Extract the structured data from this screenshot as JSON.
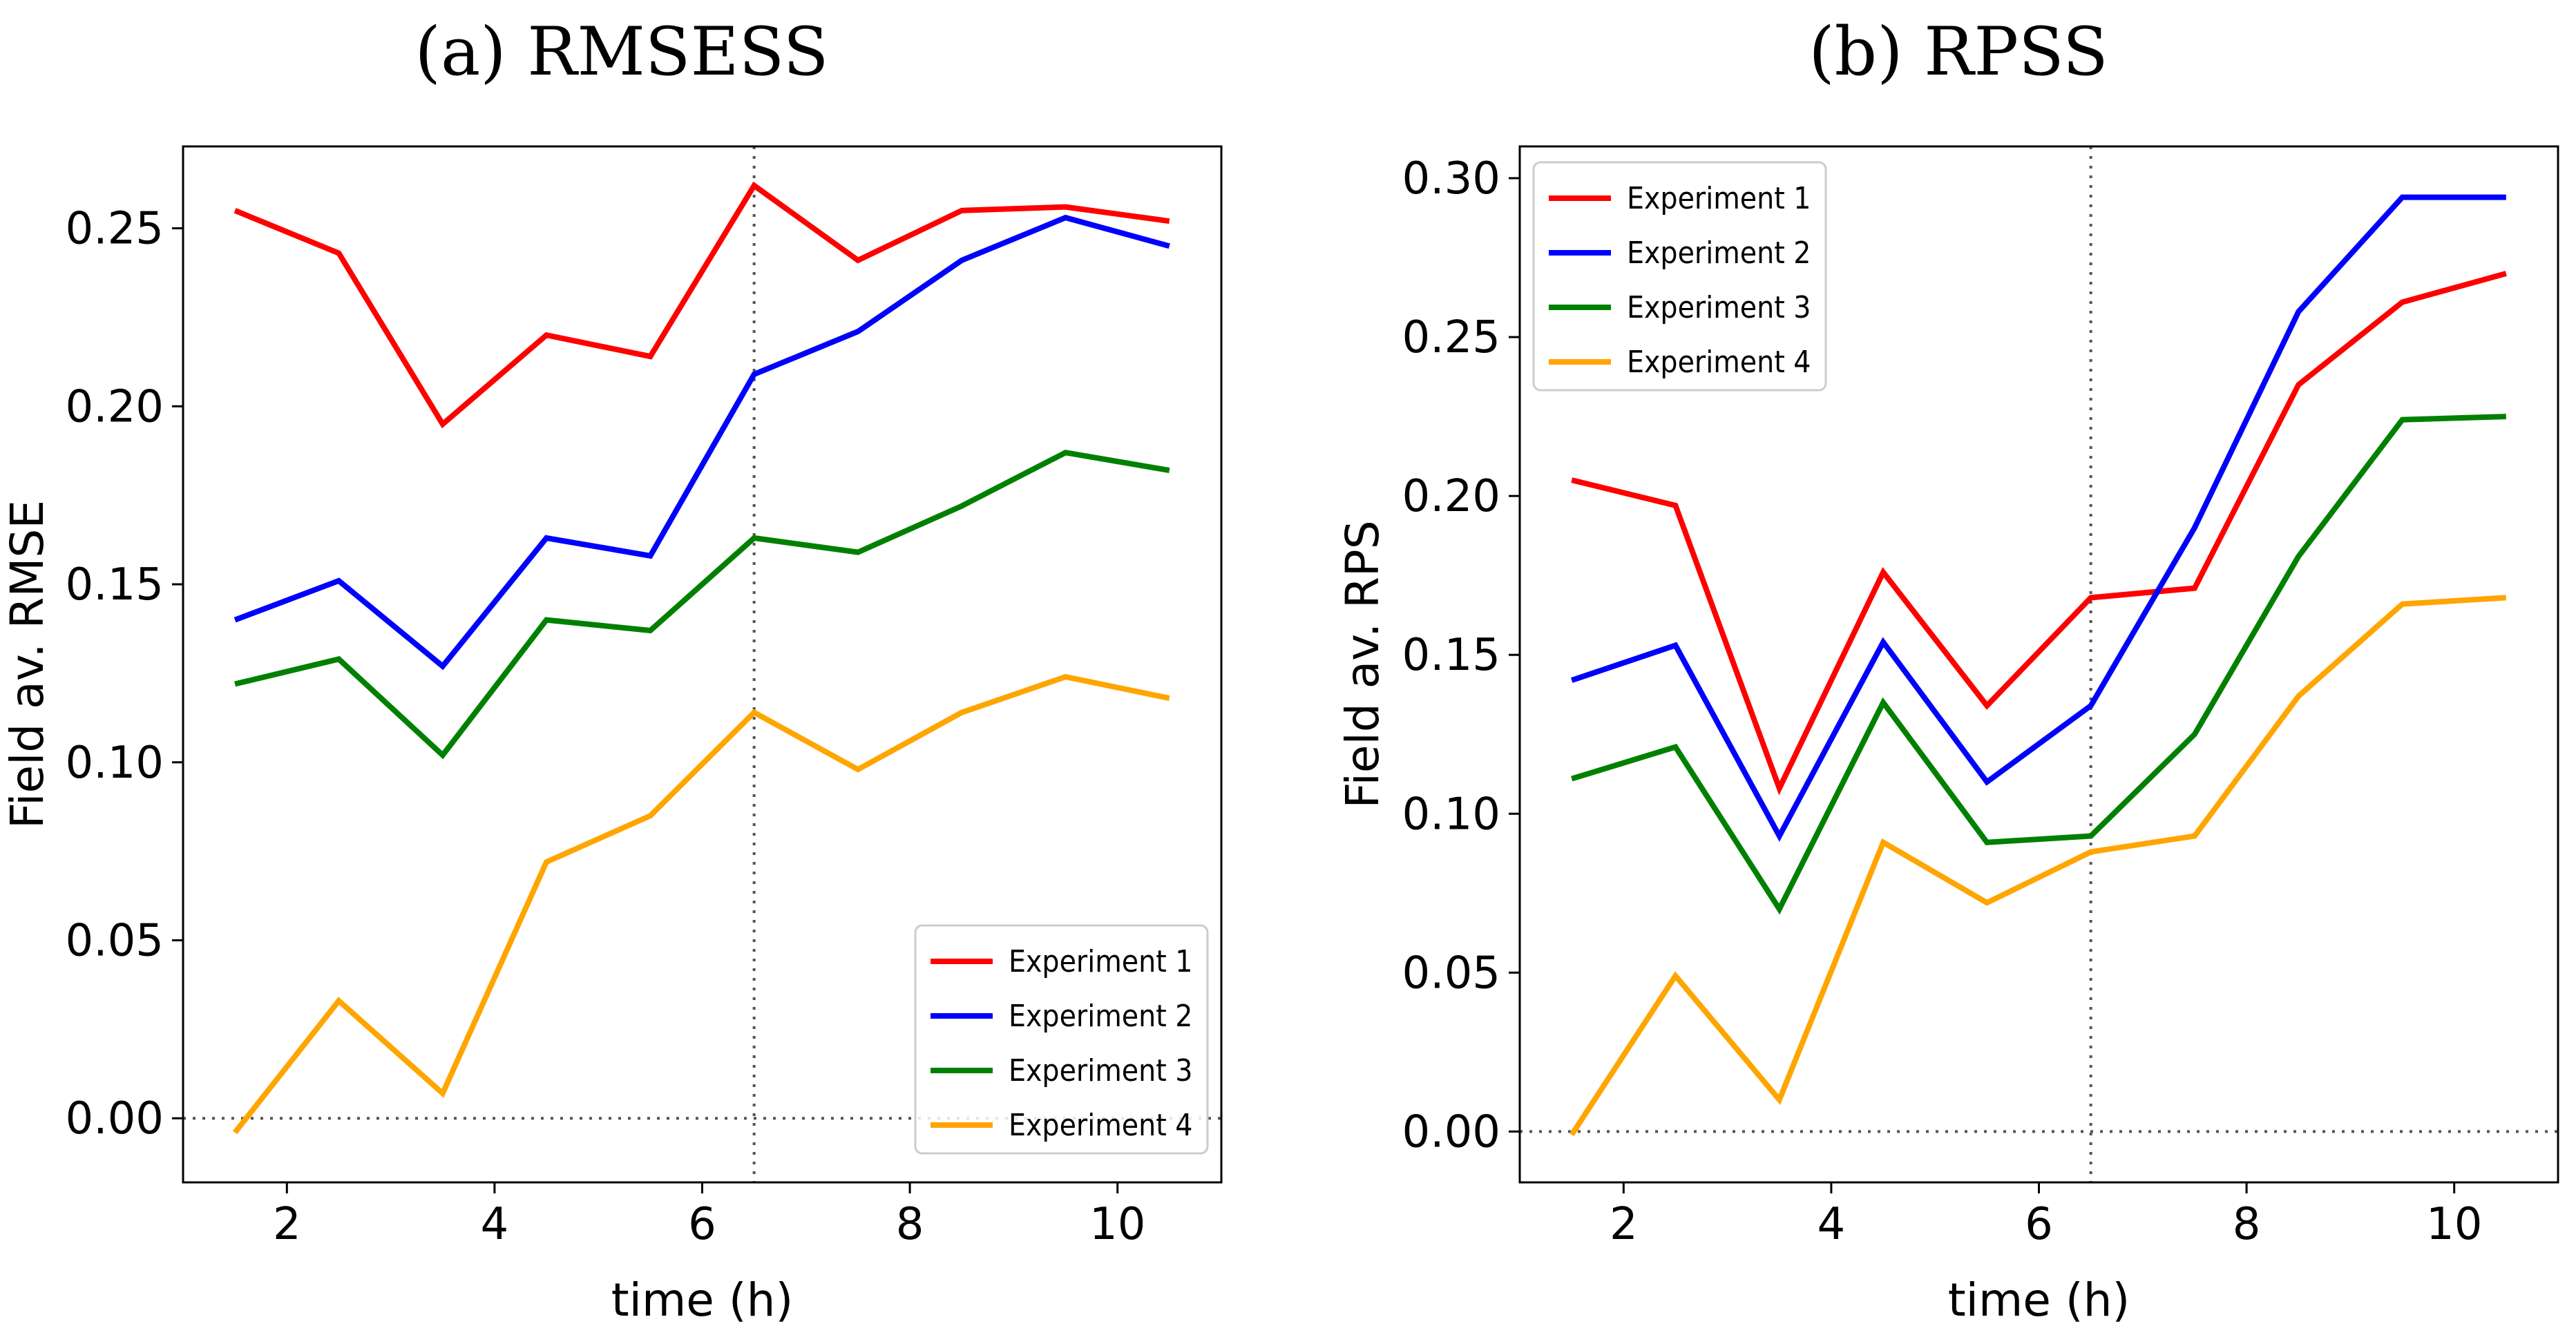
{
  "chart_data": [
    {
      "type": "line",
      "title": "(a) RMSESS",
      "xlabel": "time (h)",
      "ylabel": "Field av. RMSE",
      "xlim": [
        1.0,
        11.0
      ],
      "ylim": [
        -0.018,
        0.273
      ],
      "x_ticks": [
        2,
        4,
        6,
        8,
        10
      ],
      "y_ticks": [
        0.0,
        0.05,
        0.1,
        0.15,
        0.2,
        0.25
      ],
      "y_tick_labels": [
        "0.00",
        "0.05",
        "0.10",
        "0.15",
        "0.20",
        "0.25"
      ],
      "vline_x": 6.5,
      "hline_y": 0.0,
      "legend_position": "lower-right",
      "x": [
        1.5,
        2.5,
        3.5,
        4.5,
        5.5,
        6.5,
        7.5,
        8.5,
        9.5,
        10.5
      ],
      "series": [
        {
          "name": "Experiment 1",
          "color": "#ff0000",
          "values": [
            0.255,
            0.243,
            0.195,
            0.22,
            0.214,
            0.262,
            0.241,
            0.255,
            0.256,
            0.252
          ]
        },
        {
          "name": "Experiment 2",
          "color": "#0000ff",
          "values": [
            0.14,
            0.151,
            0.127,
            0.163,
            0.158,
            0.209,
            0.221,
            0.241,
            0.253,
            0.245
          ]
        },
        {
          "name": "Experiment 3",
          "color": "#008000",
          "values": [
            0.122,
            0.129,
            0.102,
            0.14,
            0.137,
            0.163,
            0.159,
            0.172,
            0.187,
            0.182
          ]
        },
        {
          "name": "Experiment 4",
          "color": "#ffa500",
          "values": [
            -0.004,
            0.033,
            0.007,
            0.072,
            0.085,
            0.114,
            0.098,
            0.114,
            0.124,
            0.118
          ]
        }
      ]
    },
    {
      "type": "line",
      "title": "(b) RPSS",
      "xlabel": "time (h)",
      "ylabel": "Field av. RPS",
      "xlim": [
        1.0,
        11.0
      ],
      "ylim": [
        -0.016,
        0.31
      ],
      "x_ticks": [
        2,
        4,
        6,
        8,
        10
      ],
      "y_ticks": [
        0.0,
        0.05,
        0.1,
        0.15,
        0.2,
        0.25,
        0.3
      ],
      "y_tick_labels": [
        "0.00",
        "0.05",
        "0.10",
        "0.15",
        "0.20",
        "0.25",
        "0.30"
      ],
      "vline_x": 6.5,
      "hline_y": 0.0,
      "legend_position": "upper-left",
      "x": [
        1.5,
        2.5,
        3.5,
        4.5,
        5.5,
        6.5,
        7.5,
        8.5,
        9.5,
        10.5
      ],
      "series": [
        {
          "name": "Experiment 1",
          "color": "#ff0000",
          "values": [
            0.205,
            0.197,
            0.108,
            0.176,
            0.134,
            0.168,
            0.171,
            0.235,
            0.261,
            0.27
          ]
        },
        {
          "name": "Experiment 2",
          "color": "#0000ff",
          "values": [
            0.142,
            0.153,
            0.093,
            0.154,
            0.11,
            0.134,
            0.19,
            0.258,
            0.294,
            0.294
          ]
        },
        {
          "name": "Experiment 3",
          "color": "#008000",
          "values": [
            0.111,
            0.121,
            0.07,
            0.135,
            0.091,
            0.093,
            0.125,
            0.181,
            0.224,
            0.225
          ]
        },
        {
          "name": "Experiment 4",
          "color": "#ffa500",
          "values": [
            -0.001,
            0.049,
            0.01,
            0.091,
            0.072,
            0.088,
            0.093,
            0.137,
            0.166,
            0.168
          ]
        }
      ]
    }
  ]
}
